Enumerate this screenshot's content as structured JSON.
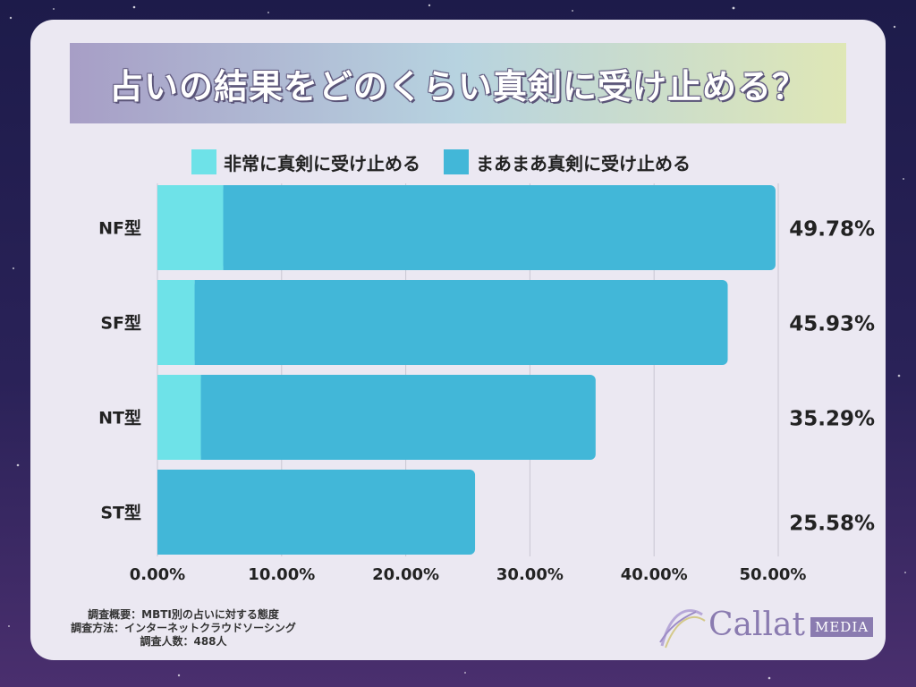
{
  "title": "占いの結果をどのくらい真剣に受け止める？",
  "colors": {
    "very_serious": "#6ee2e8",
    "somewhat_serious": "#42b7d8"
  },
  "legend": [
    {
      "label": "非常に真剣に受け止める",
      "color": "#6ee2e8"
    },
    {
      "label": "まあまあ真剣に受け止める",
      "color": "#42b7d8"
    }
  ],
  "chart_data": {
    "type": "bar",
    "orientation": "horizontal",
    "stacked": true,
    "categories": [
      "NF型",
      "SF型",
      "NT型",
      "ST型"
    ],
    "series": [
      {
        "name": "非常に真剣に受け止める",
        "values": [
          5.3,
          3.0,
          3.5,
          0.0
        ]
      },
      {
        "name": "まあまあ真剣に受け止める",
        "values": [
          44.48,
          42.93,
          31.79,
          25.58
        ]
      }
    ],
    "totals": [
      49.78,
      45.93,
      35.29,
      25.58
    ],
    "total_labels": [
      "49.78%",
      "45.93%",
      "35.29%",
      "25.58%"
    ],
    "xlim": [
      0,
      50
    ],
    "x_ticks": [
      0,
      10,
      20,
      30,
      40,
      50
    ],
    "x_tick_labels": [
      "0.00%",
      "10.00%",
      "20.00%",
      "30.00%",
      "40.00%",
      "50.00%"
    ],
    "grid": true
  },
  "footnote": {
    "line1": "調査概要：MBTI別の占いに対する態度",
    "line2": "調査方法：インターネットクラウドソーシング",
    "line3": "調査人数：488人"
  },
  "logo": {
    "name": "Callat",
    "badge": "MEDIA"
  }
}
